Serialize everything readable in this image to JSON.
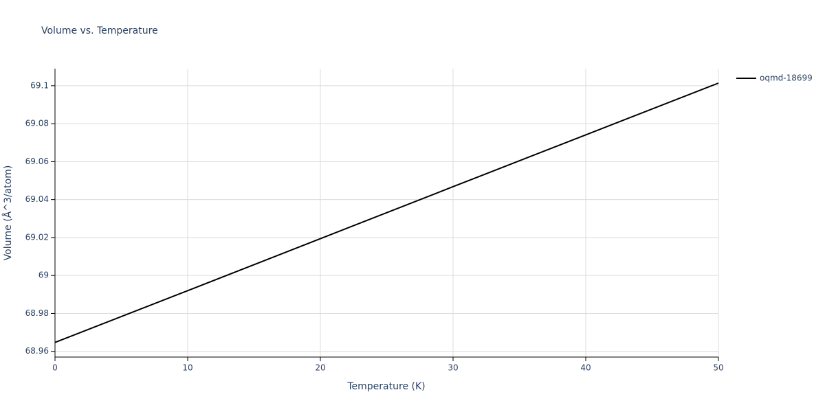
{
  "chart_data": {
    "type": "line",
    "title": "Volume vs. Temperature",
    "x_label": "Temperature (K)",
    "y_label": "Volume (Å^3/atom)",
    "x": [
      0,
      10,
      20,
      30,
      40,
      50
    ],
    "series": [
      {
        "name": "oqmd-18699",
        "color": "#000000",
        "values": [
          68.9647,
          68.992,
          69.0194,
          69.0468,
          69.0741,
          69.1014
        ]
      }
    ],
    "xlim": [
      0,
      50
    ],
    "xticks": [
      0,
      10,
      20,
      30,
      40,
      50
    ],
    "ylim": [
      68.957,
      69.109
    ],
    "yticks": [
      68.96,
      68.98,
      69,
      69.02,
      69.04,
      69.06,
      69.08,
      69.1
    ],
    "grid": true,
    "legend": "right"
  }
}
